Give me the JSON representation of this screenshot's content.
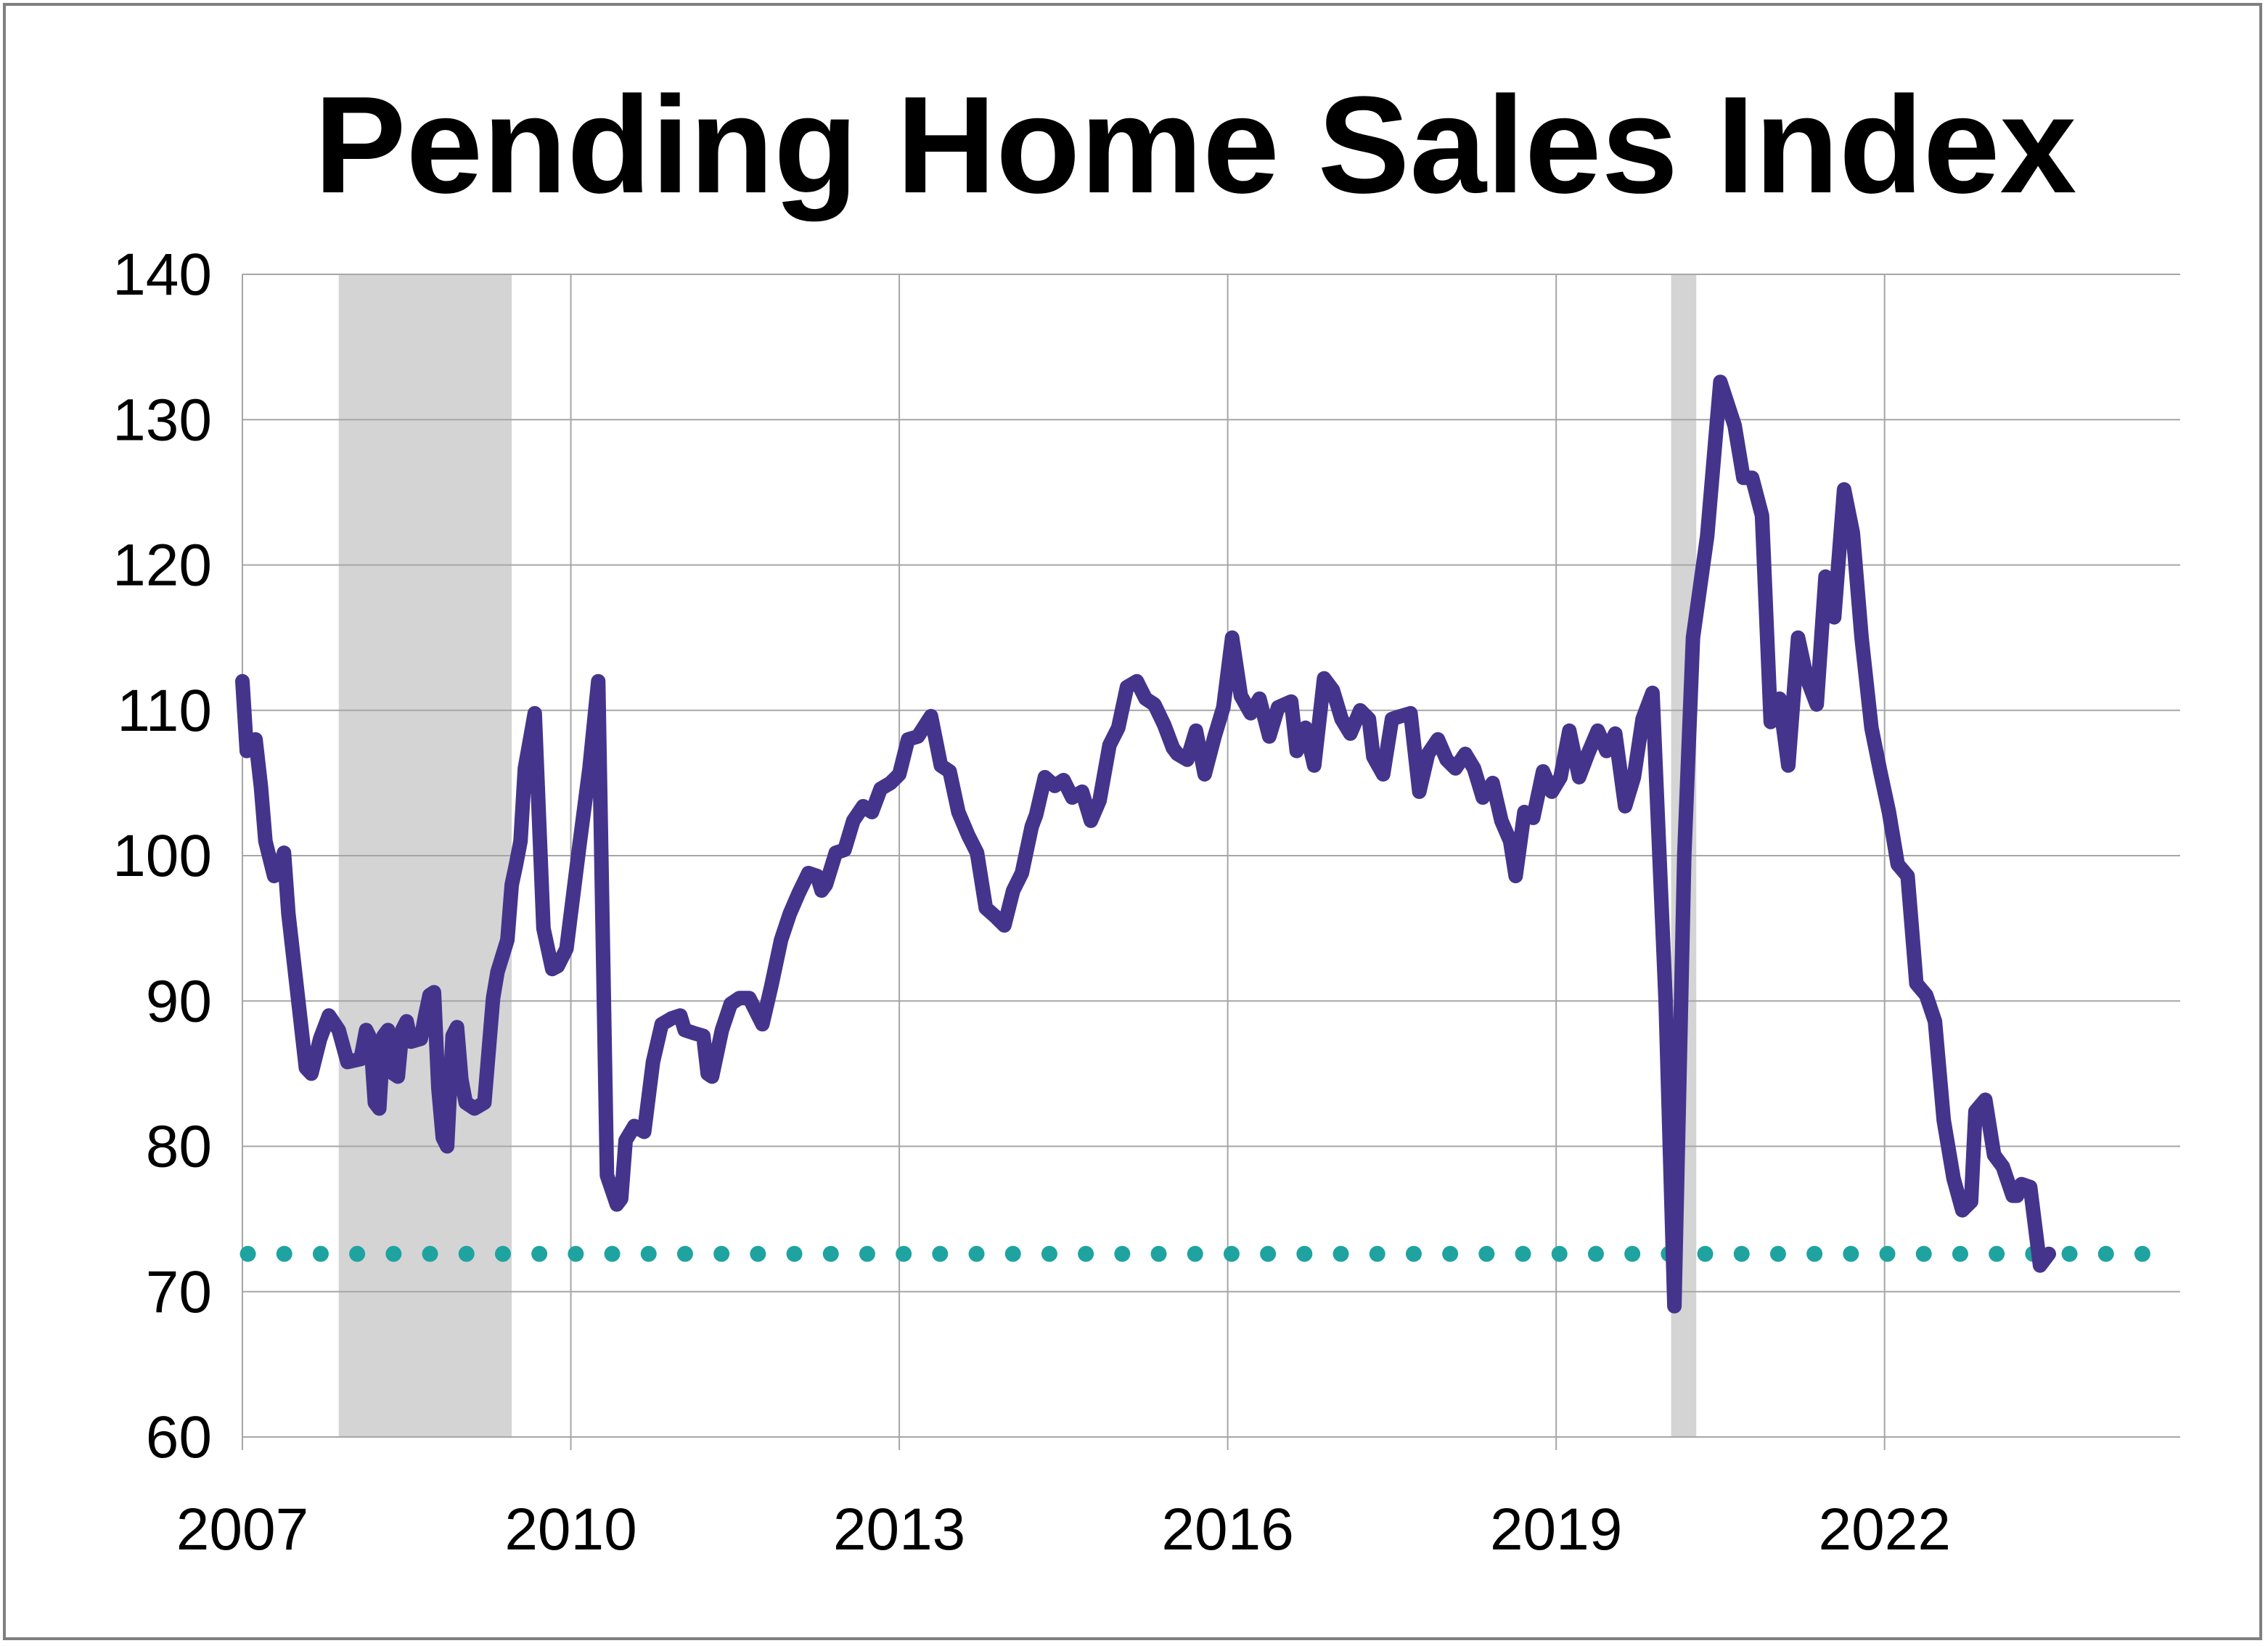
{
  "chart_data": {
    "type": "line",
    "title": "Pending Home Sales Index",
    "xlabel": "",
    "ylabel": "",
    "ylim": [
      60,
      140
    ],
    "xlim": [
      2007.0,
      2024.7
    ],
    "y_ticks": [
      "140",
      "130",
      "120",
      "110",
      "100",
      "90",
      "80",
      "70",
      "60"
    ],
    "x_ticks": [
      "2007",
      "2010",
      "2013",
      "2016",
      "2019",
      "2022"
    ],
    "grid": true,
    "legend": "none",
    "recessions": [
      {
        "start": 2007.88,
        "end": 2009.46
      },
      {
        "start": 2020.05,
        "end": 2020.28
      }
    ],
    "reference_line": {
      "value": 72.6,
      "style": "dotted"
    },
    "series": [
      {
        "values": [
          [
            2007.0,
            112.0
          ],
          [
            2007.04,
            107.2
          ],
          [
            2007.08,
            107.4
          ],
          [
            2007.12,
            108.0
          ],
          [
            2007.17,
            104.7
          ],
          [
            2007.21,
            101.0
          ],
          [
            2007.29,
            98.6
          ],
          [
            2007.33,
            98.8
          ],
          [
            2007.38,
            100.2
          ],
          [
            2007.42,
            96.0
          ],
          [
            2007.58,
            85.4
          ],
          [
            2007.63,
            85.0
          ],
          [
            2007.71,
            87.4
          ],
          [
            2007.79,
            89.0
          ],
          [
            2007.88,
            88.0
          ],
          [
            2007.96,
            85.8
          ],
          [
            2008.08,
            86.0
          ],
          [
            2008.13,
            88.0
          ],
          [
            2008.17,
            87.4
          ],
          [
            2008.21,
            83.0
          ],
          [
            2008.25,
            82.6
          ],
          [
            2008.29,
            87.6
          ],
          [
            2008.33,
            88.0
          ],
          [
            2008.38,
            85.0
          ],
          [
            2008.42,
            84.8
          ],
          [
            2008.46,
            88.0
          ],
          [
            2008.5,
            88.6
          ],
          [
            2008.54,
            87.2
          ],
          [
            2008.63,
            87.4
          ],
          [
            2008.67,
            89.0
          ],
          [
            2008.71,
            90.4
          ],
          [
            2008.75,
            90.6
          ],
          [
            2008.79,
            84.0
          ],
          [
            2008.83,
            80.6
          ],
          [
            2008.87,
            80.0
          ],
          [
            2008.92,
            87.6
          ],
          [
            2008.96,
            88.2
          ],
          [
            2009.0,
            84.6
          ],
          [
            2009.04,
            83.0
          ],
          [
            2009.12,
            82.6
          ],
          [
            2009.21,
            83.0
          ],
          [
            2009.25,
            86.6
          ],
          [
            2009.29,
            90.2
          ],
          [
            2009.33,
            92.0
          ],
          [
            2009.42,
            94.2
          ],
          [
            2009.46,
            98.0
          ],
          [
            2009.5,
            99.4
          ],
          [
            2009.54,
            101.0
          ],
          [
            2009.58,
            106.0
          ],
          [
            2009.67,
            109.8
          ],
          [
            2009.75,
            95.0
          ],
          [
            2009.83,
            92.2
          ],
          [
            2009.88,
            92.4
          ],
          [
            2009.96,
            93.6
          ],
          [
            2010.08,
            100.8
          ],
          [
            2010.17,
            106.0
          ],
          [
            2010.25,
            112.0
          ],
          [
            2010.33,
            78.0
          ],
          [
            2010.42,
            76.0
          ],
          [
            2010.46,
            76.4
          ],
          [
            2010.5,
            80.4
          ],
          [
            2010.58,
            81.4
          ],
          [
            2010.67,
            81.0
          ],
          [
            2010.75,
            85.8
          ],
          [
            2010.83,
            88.4
          ],
          [
            2010.92,
            88.8
          ],
          [
            2011.0,
            89.0
          ],
          [
            2011.04,
            88.0
          ],
          [
            2011.12,
            87.8
          ],
          [
            2011.21,
            87.6
          ],
          [
            2011.25,
            85.0
          ],
          [
            2011.29,
            84.8
          ],
          [
            2011.38,
            88.0
          ],
          [
            2011.46,
            89.8
          ],
          [
            2011.54,
            90.2
          ],
          [
            2011.63,
            90.2
          ],
          [
            2011.71,
            89.0
          ],
          [
            2011.75,
            88.4
          ],
          [
            2011.83,
            91.0
          ],
          [
            2011.92,
            94.2
          ],
          [
            2012.0,
            96.0
          ],
          [
            2012.08,
            97.4
          ],
          [
            2012.17,
            98.8
          ],
          [
            2012.25,
            98.6
          ],
          [
            2012.29,
            97.6
          ],
          [
            2012.33,
            98.0
          ],
          [
            2012.42,
            100.2
          ],
          [
            2012.5,
            100.4
          ],
          [
            2012.58,
            102.4
          ],
          [
            2012.67,
            103.4
          ],
          [
            2012.75,
            103.0
          ],
          [
            2012.83,
            104.6
          ],
          [
            2012.92,
            105.0
          ],
          [
            2013.0,
            105.6
          ],
          [
            2013.08,
            108.0
          ],
          [
            2013.17,
            108.2
          ],
          [
            2013.29,
            109.6
          ],
          [
            2013.38,
            106.2
          ],
          [
            2013.46,
            105.8
          ],
          [
            2013.54,
            103.0
          ],
          [
            2013.63,
            101.4
          ],
          [
            2013.71,
            100.2
          ],
          [
            2013.79,
            96.4
          ],
          [
            2013.88,
            95.8
          ],
          [
            2013.96,
            95.2
          ],
          [
            2014.04,
            97.6
          ],
          [
            2014.12,
            98.8
          ],
          [
            2014.21,
            102.0
          ],
          [
            2014.25,
            102.8
          ],
          [
            2014.33,
            105.4
          ],
          [
            2014.42,
            104.8
          ],
          [
            2014.5,
            105.2
          ],
          [
            2014.58,
            104.0
          ],
          [
            2014.67,
            104.4
          ],
          [
            2014.75,
            102.4
          ],
          [
            2014.83,
            103.8
          ],
          [
            2014.92,
            107.6
          ],
          [
            2015.0,
            108.8
          ],
          [
            2015.08,
            111.6
          ],
          [
            2015.17,
            112.0
          ],
          [
            2015.25,
            110.8
          ],
          [
            2015.33,
            110.4
          ],
          [
            2015.42,
            109.0
          ],
          [
            2015.5,
            107.4
          ],
          [
            2015.54,
            107.0
          ],
          [
            2015.63,
            106.6
          ],
          [
            2015.71,
            108.6
          ],
          [
            2015.79,
            105.6
          ],
          [
            2015.88,
            108.2
          ],
          [
            2015.96,
            110.2
          ],
          [
            2016.04,
            115.0
          ],
          [
            2016.12,
            111.0
          ],
          [
            2016.21,
            109.8
          ],
          [
            2016.29,
            110.8
          ],
          [
            2016.38,
            108.2
          ],
          [
            2016.46,
            110.2
          ],
          [
            2016.58,
            110.6
          ],
          [
            2016.63,
            107.2
          ],
          [
            2016.71,
            108.8
          ],
          [
            2016.79,
            106.2
          ],
          [
            2016.88,
            112.2
          ],
          [
            2016.96,
            111.4
          ],
          [
            2017.04,
            109.4
          ],
          [
            2017.12,
            108.4
          ],
          [
            2017.21,
            110.0
          ],
          [
            2017.29,
            109.4
          ],
          [
            2017.33,
            106.8
          ],
          [
            2017.42,
            105.6
          ],
          [
            2017.5,
            109.4
          ],
          [
            2017.58,
            109.6
          ],
          [
            2017.67,
            109.8
          ],
          [
            2017.75,
            104.4
          ],
          [
            2017.83,
            107.0
          ],
          [
            2017.92,
            108.0
          ],
          [
            2018.0,
            106.6
          ],
          [
            2018.08,
            106.0
          ],
          [
            2018.17,
            107.0
          ],
          [
            2018.25,
            106.0
          ],
          [
            2018.33,
            104.0
          ],
          [
            2018.42,
            105.0
          ],
          [
            2018.5,
            102.4
          ],
          [
            2018.58,
            101.0
          ],
          [
            2018.63,
            98.6
          ],
          [
            2018.71,
            103.0
          ],
          [
            2018.79,
            102.6
          ],
          [
            2018.88,
            105.8
          ],
          [
            2018.96,
            104.4
          ],
          [
            2019.04,
            105.4
          ],
          [
            2019.12,
            108.6
          ],
          [
            2019.21,
            105.4
          ],
          [
            2019.29,
            107.0
          ],
          [
            2019.38,
            108.6
          ],
          [
            2019.46,
            107.2
          ],
          [
            2019.54,
            108.4
          ],
          [
            2019.63,
            103.4
          ],
          [
            2019.71,
            105.4
          ],
          [
            2019.79,
            109.4
          ],
          [
            2019.88,
            111.2
          ],
          [
            2020.0,
            90.0
          ],
          [
            2020.08,
            69.0
          ],
          [
            2020.17,
            100.0
          ],
          [
            2020.25,
            115.0
          ],
          [
            2020.38,
            122.0
          ],
          [
            2020.5,
            132.6
          ],
          [
            2020.63,
            129.6
          ],
          [
            2020.71,
            126.0
          ],
          [
            2020.79,
            126.0
          ],
          [
            2020.88,
            123.4
          ],
          [
            2020.96,
            109.2
          ],
          [
            2021.04,
            110.8
          ],
          [
            2021.12,
            106.2
          ],
          [
            2021.21,
            115.0
          ],
          [
            2021.29,
            112.2
          ],
          [
            2021.38,
            110.4
          ],
          [
            2021.46,
            119.2
          ],
          [
            2021.54,
            116.4
          ],
          [
            2021.63,
            125.2
          ],
          [
            2021.71,
            122.2
          ],
          [
            2021.79,
            115.0
          ],
          [
            2021.88,
            108.8
          ],
          [
            2021.96,
            105.8
          ],
          [
            2022.04,
            103.0
          ],
          [
            2022.12,
            99.4
          ],
          [
            2022.21,
            98.6
          ],
          [
            2022.29,
            91.2
          ],
          [
            2022.38,
            90.4
          ],
          [
            2022.46,
            88.6
          ],
          [
            2022.54,
            81.8
          ],
          [
            2022.63,
            77.8
          ],
          [
            2022.71,
            75.6
          ],
          [
            2022.79,
            76.2
          ],
          [
            2022.83,
            82.4
          ],
          [
            2022.92,
            83.2
          ],
          [
            2023.0,
            79.4
          ],
          [
            2023.08,
            78.6
          ],
          [
            2023.17,
            76.6
          ],
          [
            2023.21,
            76.6
          ],
          [
            2023.25,
            77.4
          ],
          [
            2023.33,
            77.2
          ],
          [
            2023.42,
            71.8
          ],
          [
            2023.5,
            72.6
          ]
        ]
      }
    ]
  },
  "colors": {
    "line": "#45348c",
    "reference_dots": "#1fa3a0",
    "recession_shade": "#d4d4d4",
    "grid": "#a6a6a6",
    "frame": "#7f7f7f"
  }
}
